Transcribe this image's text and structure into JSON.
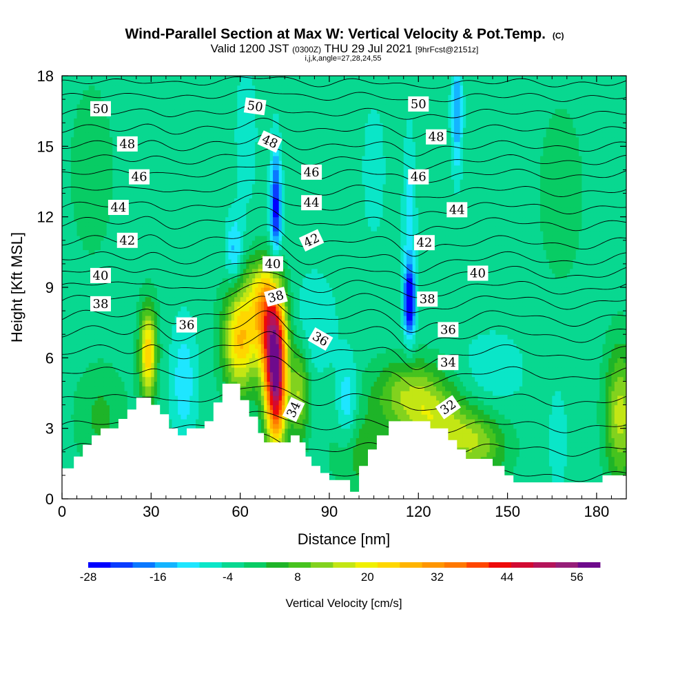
{
  "chart_data": {
    "type": "heatmap",
    "title": "Wind-Parallel Section at Max W: Vertical Velocity & Pot.Temp.",
    "title_mark": "(C)",
    "subtitle": {
      "valid": "Valid 1200 JST",
      "utc": "(0300Z)",
      "date": "THU 29 Jul 2021",
      "fcst": "[9hrFcst@2151z]"
    },
    "indices": "i,j,k,angle=27,28,24,55",
    "xlabel": "Distance [nm]",
    "ylabel": "Height [Kft MSL]",
    "xlim": [
      0,
      190
    ],
    "ylim": [
      0,
      18
    ],
    "x_ticks": [
      {
        "value": 0,
        "label": "0"
      },
      {
        "value": 30,
        "label": "30"
      },
      {
        "value": 60,
        "label": "60"
      },
      {
        "value": 90,
        "label": "90"
      },
      {
        "value": 120,
        "label": "120"
      },
      {
        "value": 150,
        "label": "150"
      },
      {
        "value": 180,
        "label": "180"
      }
    ],
    "y_ticks": [
      {
        "value": 0,
        "label": "0"
      },
      {
        "value": 3,
        "label": "3"
      },
      {
        "value": 6,
        "label": "6"
      },
      {
        "value": 9,
        "label": "9"
      },
      {
        "value": 12,
        "label": "12"
      },
      {
        "value": 15,
        "label": "15"
      },
      {
        "value": 18,
        "label": "18"
      }
    ],
    "background_w": -2,
    "w_features": [
      {
        "x": 72,
        "y": 5.0,
        "sx": 2.6,
        "sy": 1.9,
        "w": 58
      },
      {
        "x": 70,
        "y": 7.5,
        "sx": 3.5,
        "sy": 1.5,
        "w": 35
      },
      {
        "x": 60,
        "y": 6.8,
        "sx": 4.0,
        "sy": 1.6,
        "w": 30
      },
      {
        "x": 66,
        "y": 9.0,
        "sx": 3.5,
        "sy": 1.0,
        "w": 12
      },
      {
        "x": 29,
        "y": 6.2,
        "sx": 2.0,
        "sy": 1.4,
        "w": 30
      },
      {
        "x": 80,
        "y": 4.5,
        "sx": 2.2,
        "sy": 1.4,
        "w": 18
      },
      {
        "x": 118,
        "y": 4.5,
        "sx": 9.0,
        "sy": 1.0,
        "w": 18
      },
      {
        "x": 127,
        "y": 3.0,
        "sx": 9.0,
        "sy": 0.9,
        "w": 16
      },
      {
        "x": 140,
        "y": 2.2,
        "sx": 7.0,
        "sy": 1.0,
        "w": 14
      },
      {
        "x": 100,
        "y": 2.0,
        "sx": 6.0,
        "sy": 1.2,
        "w": 9
      },
      {
        "x": 13,
        "y": 3.5,
        "sx": 6.0,
        "sy": 1.5,
        "w": 7
      },
      {
        "x": 188,
        "y": 3.6,
        "sx": 3.5,
        "sy": 2.0,
        "w": 20
      },
      {
        "x": 10,
        "y": 14.0,
        "sx": 6.0,
        "sy": 3.0,
        "w": 4
      },
      {
        "x": 168,
        "y": 13.0,
        "sx": 8.0,
        "sy": 4.0,
        "w": 3
      },
      {
        "x": 117,
        "y": 8.4,
        "sx": 1.3,
        "sy": 0.9,
        "w": -27
      },
      {
        "x": 117,
        "y": 11.0,
        "sx": 1.5,
        "sy": 3.0,
        "w": -9
      },
      {
        "x": 72,
        "y": 12.0,
        "sx": 1.4,
        "sy": 1.2,
        "w": -18
      },
      {
        "x": 72,
        "y": 13.6,
        "sx": 1.2,
        "sy": 1.5,
        "w": -11
      },
      {
        "x": 58,
        "y": 10.5,
        "sx": 2.0,
        "sy": 1.0,
        "w": -12
      },
      {
        "x": 133,
        "y": 16.5,
        "sx": 1.3,
        "sy": 1.8,
        "w": -14
      },
      {
        "x": 85,
        "y": 7.5,
        "sx": 5.0,
        "sy": 1.5,
        "w": -6
      },
      {
        "x": 96,
        "y": 4.0,
        "sx": 2.5,
        "sy": 1.4,
        "w": -10
      },
      {
        "x": 41,
        "y": 5.0,
        "sx": 3.0,
        "sy": 1.8,
        "w": -9
      },
      {
        "x": 145,
        "y": 5.5,
        "sx": 8.0,
        "sy": 1.2,
        "w": -5
      },
      {
        "x": 167,
        "y": 2.5,
        "sx": 2.0,
        "sy": 1.5,
        "w": -6
      },
      {
        "x": 62,
        "y": 15.5,
        "sx": 3.0,
        "sy": 2.5,
        "w": -4
      },
      {
        "x": 105,
        "y": 14.0,
        "sx": 4.0,
        "sy": 3.0,
        "w": -3
      }
    ],
    "terrain": [
      [
        0,
        1.3
      ],
      [
        4,
        1.3
      ],
      [
        4,
        1.8
      ],
      [
        7,
        1.8
      ],
      [
        7,
        2.3
      ],
      [
        10,
        2.3
      ],
      [
        10,
        2.7
      ],
      [
        13,
        2.7
      ],
      [
        13,
        3.0
      ],
      [
        19,
        3.0
      ],
      [
        19,
        3.4
      ],
      [
        22,
        3.4
      ],
      [
        22,
        3.8
      ],
      [
        25,
        3.8
      ],
      [
        25,
        4.3
      ],
      [
        30,
        4.3
      ],
      [
        30,
        4.0
      ],
      [
        33,
        4.0
      ],
      [
        33,
        3.6
      ],
      [
        36,
        3.6
      ],
      [
        36,
        3.0
      ],
      [
        39,
        3.0
      ],
      [
        39,
        2.7
      ],
      [
        42,
        2.7
      ],
      [
        42,
        3.0
      ],
      [
        48,
        3.0
      ],
      [
        48,
        3.3
      ],
      [
        51,
        3.3
      ],
      [
        51,
        4.1
      ],
      [
        54,
        4.1
      ],
      [
        54,
        4.9
      ],
      [
        60,
        4.9
      ],
      [
        60,
        4.2
      ],
      [
        63,
        4.2
      ],
      [
        63,
        3.5
      ],
      [
        66,
        3.5
      ],
      [
        66,
        2.8
      ],
      [
        68,
        2.8
      ],
      [
        68,
        2.4
      ],
      [
        77,
        2.4
      ],
      [
        77,
        2.7
      ],
      [
        80,
        2.7
      ],
      [
        80,
        2.4
      ],
      [
        82,
        2.4
      ],
      [
        82,
        1.8
      ],
      [
        84,
        1.8
      ],
      [
        84,
        1.4
      ],
      [
        87,
        1.4
      ],
      [
        87,
        1.1
      ],
      [
        90,
        1.1
      ],
      [
        90,
        0.8
      ],
      [
        97,
        0.8
      ],
      [
        97,
        0.3
      ],
      [
        100,
        0.3
      ],
      [
        100,
        1.4
      ],
      [
        103,
        1.4
      ],
      [
        103,
        2.1
      ],
      [
        106,
        2.1
      ],
      [
        106,
        2.7
      ],
      [
        110,
        2.7
      ],
      [
        110,
        3.3
      ],
      [
        124,
        3.3
      ],
      [
        124,
        3.0
      ],
      [
        130,
        3.0
      ],
      [
        130,
        2.5
      ],
      [
        133,
        2.5
      ],
      [
        133,
        2.1
      ],
      [
        136,
        2.1
      ],
      [
        136,
        1.7
      ],
      [
        145,
        1.7
      ],
      [
        145,
        1.4
      ],
      [
        149,
        1.4
      ],
      [
        149,
        1.0
      ],
      [
        152,
        1.0
      ],
      [
        152,
        0.7
      ],
      [
        182,
        0.7
      ],
      [
        182,
        1.0
      ],
      [
        190,
        1.0
      ]
    ],
    "theta_levels": [
      {
        "theta": 30,
        "base": 1.0
      },
      {
        "theta": 31,
        "base": 2.1
      },
      {
        "theta": 32,
        "base": 3.1
      },
      {
        "theta": 33,
        "base": 4.2
      },
      {
        "theta": 34,
        "base": 5.3
      },
      {
        "theta": 35,
        "base": 6.2
      },
      {
        "theta": 36,
        "base": 7.0
      },
      {
        "theta": 37,
        "base": 7.7
      },
      {
        "theta": 38,
        "base": 8.4
      },
      {
        "theta": 39,
        "base": 9.0
      },
      {
        "theta": 40,
        "base": 9.6
      },
      {
        "theta": 41,
        "base": 10.2
      },
      {
        "theta": 42,
        "base": 10.9
      },
      {
        "theta": 43,
        "base": 11.7
      },
      {
        "theta": 44,
        "base": 12.4
      },
      {
        "theta": 45,
        "base": 13.1
      },
      {
        "theta": 46,
        "base": 13.8
      },
      {
        "theta": 47,
        "base": 14.4
      },
      {
        "theta": 48,
        "base": 15.0
      },
      {
        "theta": 49,
        "base": 15.7
      },
      {
        "theta": 50,
        "base": 16.4
      },
      {
        "theta": 51,
        "base": 17.1
      },
      {
        "theta": 52,
        "base": 17.7
      }
    ],
    "theta_labels": [
      {
        "text": "50",
        "x": 13,
        "y": 16.6,
        "angle": 0
      },
      {
        "text": "48",
        "x": 22,
        "y": 15.1,
        "angle": 0
      },
      {
        "text": "46",
        "x": 26,
        "y": 13.7,
        "angle": 0
      },
      {
        "text": "44",
        "x": 19,
        "y": 12.4,
        "angle": 0
      },
      {
        "text": "42",
        "x": 22,
        "y": 11.0,
        "angle": 0
      },
      {
        "text": "40",
        "x": 13,
        "y": 9.5,
        "angle": 0
      },
      {
        "text": "38",
        "x": 13,
        "y": 8.3,
        "angle": 0
      },
      {
        "text": "36",
        "x": 42,
        "y": 7.4,
        "angle": 0
      },
      {
        "text": "50",
        "x": 65,
        "y": 16.7,
        "angle": 8
      },
      {
        "text": "48",
        "x": 70,
        "y": 15.2,
        "angle": 25
      },
      {
        "text": "46",
        "x": 84,
        "y": 13.9,
        "angle": 0
      },
      {
        "text": "44",
        "x": 84,
        "y": 12.6,
        "angle": 0
      },
      {
        "text": "42",
        "x": 84,
        "y": 11.0,
        "angle": -25
      },
      {
        "text": "40",
        "x": 71,
        "y": 10.0,
        "angle": 0
      },
      {
        "text": "38",
        "x": 72,
        "y": 8.6,
        "angle": -15
      },
      {
        "text": "36",
        "x": 87,
        "y": 6.8,
        "angle": 30
      },
      {
        "text": "34",
        "x": 78,
        "y": 3.8,
        "angle": -65
      },
      {
        "text": "50",
        "x": 120,
        "y": 16.8,
        "angle": 0
      },
      {
        "text": "48",
        "x": 126,
        "y": 15.4,
        "angle": 0
      },
      {
        "text": "46",
        "x": 120,
        "y": 13.7,
        "angle": 0
      },
      {
        "text": "44",
        "x": 133,
        "y": 12.3,
        "angle": 0
      },
      {
        "text": "42",
        "x": 122,
        "y": 10.9,
        "angle": 0
      },
      {
        "text": "40",
        "x": 140,
        "y": 9.6,
        "angle": 0
      },
      {
        "text": "38",
        "x": 123,
        "y": 8.5,
        "angle": 0
      },
      {
        "text": "36",
        "x": 130,
        "y": 7.2,
        "angle": 0
      },
      {
        "text": "34",
        "x": 130,
        "y": 5.8,
        "angle": 0
      },
      {
        "text": "32",
        "x": 130,
        "y": 3.9,
        "angle": -35
      }
    ],
    "colorbar": {
      "title": "Vertical Velocity [cm/s]",
      "min": -28,
      "max": 60,
      "step": 4,
      "colors": [
        "#0000ff",
        "#0a3cff",
        "#0a78ff",
        "#14b4ff",
        "#1ee6ff",
        "#0ae6c8",
        "#08d890",
        "#08cc64",
        "#1eb428",
        "#46c31e",
        "#82d21e",
        "#c3e614",
        "#f0f000",
        "#ffd700",
        "#ffb400",
        "#ff9600",
        "#ff7800",
        "#ff4600",
        "#ee0a0a",
        "#d20a32",
        "#b4145a",
        "#961e78",
        "#6e0a8c"
      ],
      "tick_labels": [
        {
          "value": -28,
          "label": "-28"
        },
        {
          "value": -16,
          "label": "-16"
        },
        {
          "value": -4,
          "label": "-4"
        },
        {
          "value": 8,
          "label": "8"
        },
        {
          "value": 20,
          "label": "20"
        },
        {
          "value": 32,
          "label": "32"
        },
        {
          "value": 44,
          "label": "44"
        },
        {
          "value": 56,
          "label": "56"
        }
      ]
    }
  }
}
